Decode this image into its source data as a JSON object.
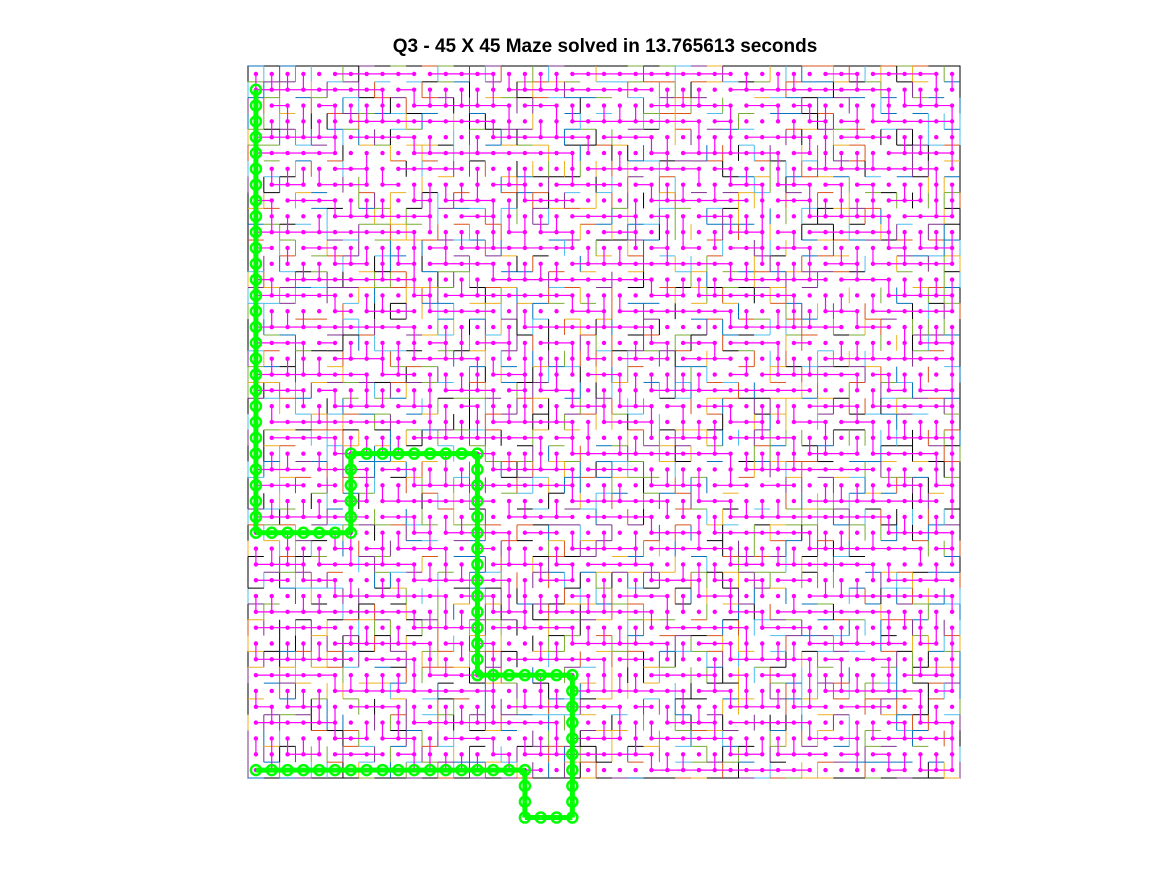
{
  "figure": {
    "title": "Q3 - 45 X 45 Maze solved in 13.765613 seconds"
  },
  "maze": {
    "rows": 45,
    "cols": 45,
    "wall_colors": [
      "#000000",
      "#d95319",
      "#edb120",
      "#0072bd",
      "#4dbeee",
      "#77ac30",
      "#7e2f8e"
    ],
    "visited_node_color": "#ff00ff",
    "solution_path_color": "#00ff00",
    "path_cells": [
      [
        0,
        44
      ],
      [
        1,
        44
      ],
      [
        2,
        44
      ],
      [
        3,
        44
      ],
      [
        4,
        44
      ],
      [
        5,
        44
      ],
      [
        6,
        44
      ],
      [
        7,
        44
      ],
      [
        8,
        44
      ],
      [
        9,
        44
      ],
      [
        10,
        44
      ],
      [
        11,
        44
      ],
      [
        12,
        44
      ],
      [
        13,
        44
      ],
      [
        14,
        44
      ],
      [
        15,
        44
      ],
      [
        16,
        44
      ],
      [
        17,
        44
      ],
      [
        17,
        45
      ],
      [
        17,
        46
      ],
      [
        17,
        47
      ],
      [
        18,
        47
      ],
      [
        19,
        47
      ],
      [
        20,
        47
      ],
      [
        20,
        46
      ],
      [
        20,
        45
      ],
      [
        20,
        44
      ],
      [
        20,
        43
      ],
      [
        20,
        42
      ],
      [
        20,
        41
      ],
      [
        20,
        40
      ],
      [
        20,
        39
      ],
      [
        20,
        38
      ],
      [
        19,
        38
      ],
      [
        18,
        38
      ],
      [
        17,
        38
      ],
      [
        16,
        38
      ],
      [
        15,
        38
      ],
      [
        14,
        38
      ],
      [
        14,
        37
      ],
      [
        14,
        36
      ],
      [
        14,
        35
      ],
      [
        14,
        34
      ],
      [
        14,
        33
      ],
      [
        14,
        32
      ],
      [
        14,
        31
      ],
      [
        14,
        30
      ],
      [
        14,
        29
      ],
      [
        14,
        28
      ],
      [
        14,
        27
      ],
      [
        14,
        26
      ],
      [
        14,
        25
      ],
      [
        14,
        24
      ],
      [
        13,
        24
      ],
      [
        12,
        24
      ],
      [
        11,
        24
      ],
      [
        10,
        24
      ],
      [
        9,
        24
      ],
      [
        8,
        24
      ],
      [
        7,
        24
      ],
      [
        6,
        24
      ],
      [
        6,
        25
      ],
      [
        6,
        26
      ],
      [
        6,
        27
      ],
      [
        6,
        28
      ],
      [
        6,
        29
      ],
      [
        5,
        29
      ],
      [
        4,
        29
      ],
      [
        3,
        29
      ],
      [
        2,
        29
      ],
      [
        1,
        29
      ],
      [
        0,
        29
      ],
      [
        0,
        28
      ],
      [
        0,
        27
      ],
      [
        0,
        26
      ],
      [
        0,
        25
      ],
      [
        0,
        24
      ],
      [
        0,
        23
      ],
      [
        0,
        22
      ],
      [
        0,
        21
      ],
      [
        0,
        20
      ],
      [
        0,
        19
      ],
      [
        0,
        18
      ],
      [
        0,
        17
      ],
      [
        0,
        16
      ],
      [
        0,
        15
      ],
      [
        0,
        14
      ],
      [
        0,
        13
      ],
      [
        0,
        12
      ],
      [
        0,
        11
      ],
      [
        0,
        10
      ],
      [
        0,
        9
      ],
      [
        0,
        8
      ],
      [
        0,
        7
      ],
      [
        0,
        6
      ],
      [
        0,
        5
      ],
      [
        0,
        4
      ],
      [
        0,
        3
      ],
      [
        0,
        2
      ],
      [
        0,
        1
      ]
    ]
  }
}
